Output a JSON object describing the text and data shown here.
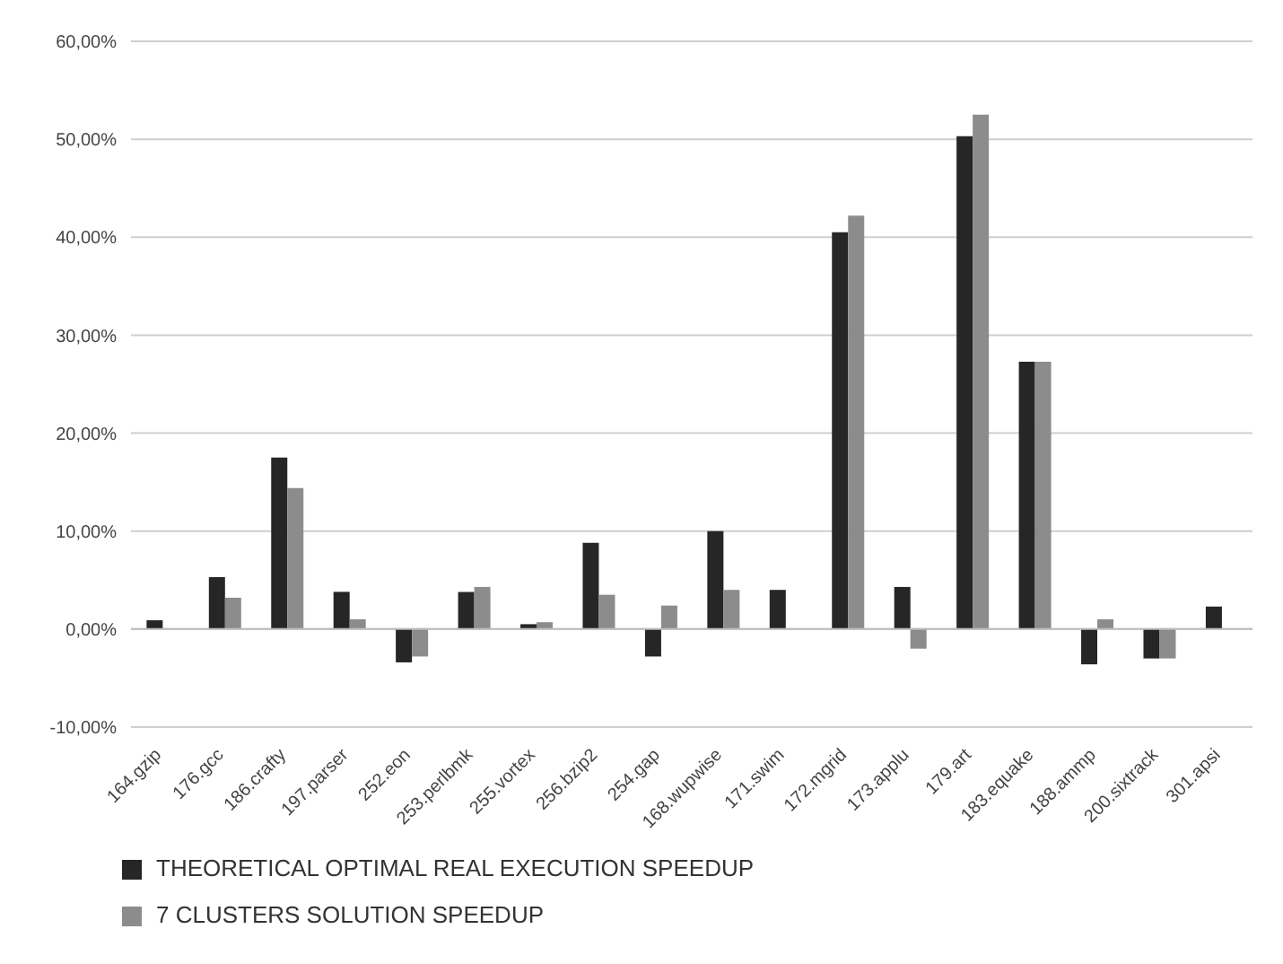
{
  "chart_data": {
    "type": "bar",
    "categories": [
      "164.gzip",
      "176.gcc",
      "186.crafty",
      "197.parser",
      "252.eon",
      "253.perlbmk",
      "255.vortex",
      "256.bzip2",
      "254.gap",
      "168.wupwise",
      "171.swim",
      "172.mgrid",
      "173.applu",
      "179.art",
      "183.equake",
      "188.ammp",
      "200.sixtrack",
      "301.apsi"
    ],
    "series": [
      {
        "name": "THEORETICAL OPTIMAL REAL EXECUTION SPEEDUP",
        "color": "#262626",
        "values": [
          0.9,
          5.3,
          17.5,
          3.8,
          -3.4,
          3.8,
          0.5,
          8.8,
          -2.8,
          10.0,
          4.0,
          40.5,
          4.3,
          50.3,
          27.3,
          -3.6,
          -3.0,
          2.3
        ]
      },
      {
        "name": "7 CLUSTERS SOLUTION SPEEDUP",
        "color": "#8c8c8c",
        "values": [
          0,
          3.2,
          14.4,
          1.0,
          -2.8,
          4.3,
          0.7,
          3.5,
          2.4,
          4.0,
          0,
          42.2,
          -2.0,
          52.5,
          27.3,
          1.0,
          -3.0,
          0
        ]
      }
    ],
    "ylim": [
      -10,
      60
    ],
    "yticks": [
      {
        "value": -10,
        "label": "-10,00%"
      },
      {
        "value": 0,
        "label": "0,00%"
      },
      {
        "value": 10,
        "label": "10,00%"
      },
      {
        "value": 20,
        "label": "20,00%"
      },
      {
        "value": 30,
        "label": "30,00%"
      },
      {
        "value": 40,
        "label": "40,00%"
      },
      {
        "value": 50,
        "label": "50,00%"
      },
      {
        "value": 60,
        "label": "60,00%"
      }
    ],
    "grid": "y",
    "legend": "bottom"
  }
}
